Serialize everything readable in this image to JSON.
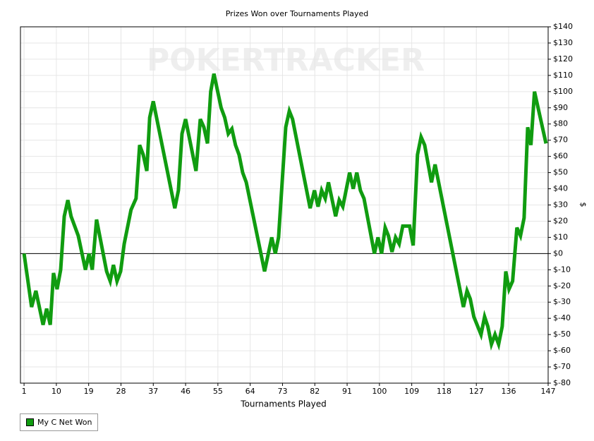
{
  "chart_data": {
    "type": "line",
    "title": "Prizes Won over Tournaments Played",
    "watermark": "POKERTRACKER",
    "x_label": "Tournaments Played",
    "y_label": "$",
    "grid": true,
    "legend": "bottom-left",
    "xlim": [
      0,
      147
    ],
    "ylim": [
      -80,
      140
    ],
    "xticks": [
      1,
      10,
      19,
      28,
      37,
      46,
      55,
      64,
      73,
      82,
      91,
      100,
      109,
      118,
      127,
      136,
      147
    ],
    "yticks": [
      {
        "value": 140,
        "label": "$140"
      },
      {
        "value": 130,
        "label": "$130"
      },
      {
        "value": 120,
        "label": "$120"
      },
      {
        "value": 110,
        "label": "$110"
      },
      {
        "value": 100,
        "label": "$100"
      },
      {
        "value": 90,
        "label": "$90"
      },
      {
        "value": 80,
        "label": "$80"
      },
      {
        "value": 70,
        "label": "$70"
      },
      {
        "value": 60,
        "label": "$60"
      },
      {
        "value": 50,
        "label": "$50"
      },
      {
        "value": 40,
        "label": "$40"
      },
      {
        "value": 30,
        "label": "$30"
      },
      {
        "value": 20,
        "label": "$20"
      },
      {
        "value": 10,
        "label": "$10"
      },
      {
        "value": 0,
        "label": "$0"
      },
      {
        "value": -10,
        "label": "$-10"
      },
      {
        "value": -20,
        "label": "$-20"
      },
      {
        "value": -30,
        "label": "$-30"
      },
      {
        "value": -40,
        "label": "$-40"
      },
      {
        "value": -50,
        "label": "$-50"
      },
      {
        "value": -60,
        "label": "$-60"
      },
      {
        "value": -70,
        "label": "$-70"
      },
      {
        "value": -80,
        "label": "$-80"
      }
    ],
    "x": [
      1,
      3.1,
      4.3,
      6.3,
      7.3,
      8.3,
      9.2,
      10.2,
      11.2,
      12.2,
      13.2,
      14.1,
      16.1,
      18.1,
      19.1,
      20,
      21.2,
      24,
      25,
      25.9,
      26.9,
      27.9,
      28.9,
      30.8,
      32.2,
      33.2,
      34.2,
      35.2,
      36,
      37,
      43,
      44,
      45,
      46,
      48.9,
      50.1,
      51.1,
      52.1,
      53,
      53.9,
      55.9,
      56.9,
      57.9,
      58.9,
      59.9,
      60.9,
      61.9,
      62.9,
      68,
      70,
      71,
      71.9,
      73.9,
      74.9,
      75.8,
      80.7,
      81.9,
      82.9,
      83.9,
      84.9,
      85.8,
      87.8,
      88.8,
      89.8,
      91.7,
      92.7,
      93.7,
      94.7,
      95.7,
      98.6,
      99.6,
      100.6,
      101.6,
      102.5,
      103.5,
      104.5,
      105.5,
      106.5,
      108.4,
      109.4,
      110.6,
      111.6,
      112.6,
      114.5,
      115.5,
      123.4,
      124.4,
      125.3,
      126.3,
      128.3,
      129.3,
      130.2,
      131.2,
      132.2,
      133.2,
      134.2,
      135.2,
      136.1,
      137.1,
      138.3,
      139.3,
      140.3,
      141.3,
      142.2,
      143.2,
      146.4
    ],
    "series": [
      {
        "name": "My C Net Won",
        "color": "#109c10",
        "values": [
          0,
          -33,
          -23,
          -44,
          -34,
          -44,
          -12,
          -22,
          -10,
          23,
          33,
          23,
          11,
          -10,
          0,
          -10,
          21,
          -11,
          -17,
          -7,
          -17,
          -11,
          6,
          27,
          34,
          67,
          61,
          51,
          84,
          94,
          28,
          39,
          74,
          83,
          51,
          83,
          78,
          68,
          100,
          111,
          90,
          84,
          74,
          77,
          67,
          61,
          50,
          44,
          -11,
          10,
          0,
          10,
          78,
          88,
          83,
          28,
          39,
          29,
          39,
          34,
          44,
          23,
          33,
          29,
          50,
          40,
          50,
          39,
          34,
          0,
          10,
          0,
          16,
          11,
          1,
          10,
          6,
          17,
          17,
          5,
          61,
          72,
          67,
          44,
          55,
          -33,
          -23,
          -28,
          -39,
          -50,
          -39,
          -45,
          -56,
          -50,
          -56,
          -45,
          -11,
          -22,
          -17,
          16,
          11,
          22,
          78,
          67,
          100,
          68
        ]
      }
    ]
  }
}
